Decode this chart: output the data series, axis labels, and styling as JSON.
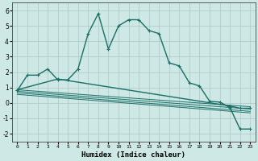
{
  "xlabel": "Humidex (Indice chaleur)",
  "background_color": "#cde8e5",
  "grid_color": "#aac8c5",
  "line_color": "#1a6e66",
  "xlim": [
    -0.5,
    23.5
  ],
  "ylim": [
    -2.5,
    6.5
  ],
  "xticks": [
    0,
    1,
    2,
    3,
    4,
    5,
    6,
    7,
    8,
    9,
    10,
    11,
    12,
    13,
    14,
    15,
    16,
    17,
    18,
    19,
    20,
    21,
    22,
    23
  ],
  "yticks": [
    -2,
    -1,
    0,
    1,
    2,
    3,
    4,
    5,
    6
  ],
  "series1_x": [
    0,
    1,
    2,
    3,
    4,
    5,
    6,
    7,
    8,
    9,
    10,
    11,
    12,
    13,
    14,
    15,
    16,
    17,
    18,
    19,
    20,
    21,
    22,
    23
  ],
  "series1_y": [
    0.8,
    1.8,
    1.8,
    2.2,
    1.5,
    1.5,
    2.2,
    4.5,
    5.8,
    3.5,
    5.0,
    5.4,
    5.4,
    4.7,
    4.5,
    2.6,
    2.4,
    1.3,
    1.1,
    0.1,
    0.05,
    -0.3,
    -1.7,
    -1.7
  ],
  "series2_x": [
    0,
    4,
    21,
    22,
    23
  ],
  "series2_y": [
    0.85,
    1.55,
    -0.2,
    -0.35,
    -0.35
  ],
  "line_slopes": [
    {
      "x0": 0,
      "y0": 0.85,
      "x1": 23,
      "y1": -0.25
    },
    {
      "x0": 0,
      "y0": 0.75,
      "x1": 23,
      "y1": -0.4
    },
    {
      "x0": 0,
      "y0": 0.65,
      "x1": 23,
      "y1": -0.55
    },
    {
      "x0": 0,
      "y0": 0.55,
      "x1": 23,
      "y1": -0.65
    }
  ]
}
